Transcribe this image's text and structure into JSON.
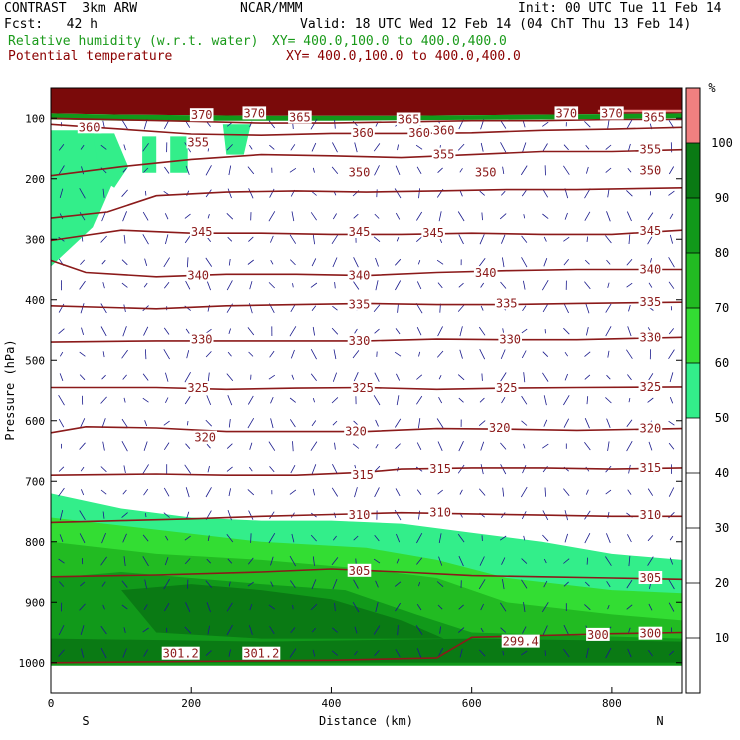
{
  "header": {
    "model": "CONTRAST  3km ARW",
    "org": "NCAR/MMM",
    "init": "Init: 00 UTC Tue 11 Feb 14",
    "fcst": "Fcst:   42 h",
    "valid": "Valid: 18 UTC Wed 12 Feb 14 (04 ChT Thu 13 Feb 14)",
    "field1_name": "Relative humidity (w.r.t. water)",
    "field1_xy": "XY= 400.0,100.0 to 400.0,400.0",
    "field2_name": "Potential temperature",
    "field2_xy": "XY= 400.0,100.0 to 400.0,400.0"
  },
  "colors": {
    "theta_line": "#8b1a1a",
    "theta_label": "#8b1a1a",
    "wind_vector": "#1a1a8c",
    "rh_50": "#33ee8a",
    "rh_60": "#33dd33",
    "rh_70": "#22bb22",
    "rh_80": "#11991a",
    "rh_90": "#0a7a14",
    "rh_100": "#7a0a0a",
    "rh_top": "#f08080"
  },
  "chart_data": {
    "type": "contour",
    "xlabel": "Distance (km)",
    "ylabel": "Pressure (hPa)",
    "xlim": [
      0,
      900
    ],
    "ylim": [
      1050,
      50
    ],
    "x_ticks": [
      0,
      200,
      400,
      600,
      800
    ],
    "y_ticks": [
      100,
      200,
      300,
      400,
      500,
      600,
      700,
      800,
      900,
      1000
    ],
    "x_end_labels": {
      "left": "S",
      "right": "N"
    },
    "colorbar": {
      "unit": "%",
      "levels": [
        10,
        20,
        30,
        40,
        50,
        60,
        70,
        80,
        90,
        100
      ],
      "bands": [
        {
          "from": 0,
          "to": 50,
          "color": "#ffffff"
        },
        {
          "from": 50,
          "to": 60,
          "color": "#33ee8a"
        },
        {
          "from": 60,
          "to": 70,
          "color": "#33dd33"
        },
        {
          "from": 70,
          "to": 80,
          "color": "#22bb22"
        },
        {
          "from": 80,
          "to": 90,
          "color": "#11991a"
        },
        {
          "from": 90,
          "to": 100,
          "color": "#0a7a14"
        },
        {
          "from": 100,
          "to": 110,
          "color": "#f08080"
        }
      ]
    },
    "theta_contours": [
      {
        "level": 300,
        "points": [
          [
            0,
            1000
          ],
          [
            200,
            998
          ],
          [
            400,
            996
          ],
          [
            550,
            992
          ],
          [
            600,
            958
          ],
          [
            700,
            955
          ],
          [
            800,
            952
          ],
          [
            900,
            950
          ]
        ]
      },
      {
        "level": 305,
        "points": [
          [
            0,
            858
          ],
          [
            150,
            855
          ],
          [
            300,
            850
          ],
          [
            400,
            845
          ],
          [
            500,
            850
          ],
          [
            600,
            856
          ],
          [
            700,
            858
          ],
          [
            800,
            860
          ],
          [
            900,
            862
          ]
        ]
      },
      {
        "level": 310,
        "points": [
          [
            0,
            768
          ],
          [
            100,
            765
          ],
          [
            200,
            762
          ],
          [
            300,
            758
          ],
          [
            400,
            755
          ],
          [
            500,
            752
          ],
          [
            600,
            754
          ],
          [
            700,
            756
          ],
          [
            800,
            758
          ],
          [
            900,
            758
          ]
        ]
      },
      {
        "level": 315,
        "points": [
          [
            0,
            690
          ],
          [
            150,
            688
          ],
          [
            250,
            690
          ],
          [
            350,
            690
          ],
          [
            450,
            685
          ],
          [
            500,
            680
          ],
          [
            600,
            678
          ],
          [
            700,
            678
          ],
          [
            800,
            680
          ],
          [
            900,
            678
          ]
        ]
      },
      {
        "level": 320,
        "points": [
          [
            0,
            620
          ],
          [
            50,
            610
          ],
          [
            150,
            612
          ],
          [
            250,
            618
          ],
          [
            350,
            618
          ],
          [
            450,
            618
          ],
          [
            550,
            613
          ],
          [
            650,
            614
          ],
          [
            750,
            616
          ],
          [
            900,
            613
          ]
        ]
      },
      {
        "level": 325,
        "points": [
          [
            0,
            545
          ],
          [
            150,
            545
          ],
          [
            250,
            548
          ],
          [
            350,
            546
          ],
          [
            450,
            545
          ],
          [
            550,
            548
          ],
          [
            650,
            546
          ],
          [
            750,
            545
          ],
          [
            900,
            544
          ]
        ]
      },
      {
        "level": 330,
        "points": [
          [
            0,
            470
          ],
          [
            150,
            468
          ],
          [
            250,
            468
          ],
          [
            350,
            468
          ],
          [
            450,
            468
          ],
          [
            550,
            465
          ],
          [
            650,
            466
          ],
          [
            750,
            466
          ],
          [
            900,
            462
          ]
        ]
      },
      {
        "level": 335,
        "points": [
          [
            0,
            410
          ],
          [
            150,
            415
          ],
          [
            250,
            410
          ],
          [
            350,
            408
          ],
          [
            450,
            406
          ],
          [
            550,
            408
          ],
          [
            650,
            408
          ],
          [
            750,
            406
          ],
          [
            900,
            404
          ]
        ]
      },
      {
        "level": 340,
        "points": [
          [
            0,
            335
          ],
          [
            50,
            355
          ],
          [
            150,
            362
          ],
          [
            250,
            358
          ],
          [
            350,
            358
          ],
          [
            450,
            360
          ],
          [
            550,
            355
          ],
          [
            650,
            352
          ],
          [
            750,
            350
          ],
          [
            900,
            350
          ]
        ]
      },
      {
        "level": 345,
        "points": [
          [
            0,
            302
          ],
          [
            100,
            285
          ],
          [
            200,
            290
          ],
          [
            300,
            290
          ],
          [
            400,
            292
          ],
          [
            500,
            292
          ],
          [
            600,
            290
          ],
          [
            700,
            292
          ],
          [
            800,
            292
          ],
          [
            900,
            285
          ]
        ]
      },
      {
        "level": 350,
        "points": [
          [
            0,
            265
          ],
          [
            80,
            255
          ],
          [
            150,
            228
          ],
          [
            250,
            222
          ],
          [
            350,
            220
          ],
          [
            450,
            222
          ],
          [
            550,
            220
          ],
          [
            650,
            218
          ],
          [
            750,
            218
          ],
          [
            900,
            215
          ]
        ]
      },
      {
        "level": 355,
        "points": [
          [
            0,
            195
          ],
          [
            100,
            180
          ],
          [
            200,
            168
          ],
          [
            300,
            160
          ],
          [
            400,
            162
          ],
          [
            500,
            165
          ],
          [
            600,
            160
          ],
          [
            700,
            155
          ],
          [
            800,
            155
          ],
          [
            900,
            152
          ]
        ]
      },
      {
        "level": 360,
        "points": [
          [
            0,
            110
          ],
          [
            100,
            118
          ],
          [
            200,
            126
          ],
          [
            300,
            128
          ],
          [
            400,
            125
          ],
          [
            500,
            125
          ],
          [
            600,
            124
          ],
          [
            700,
            120
          ],
          [
            800,
            118
          ],
          [
            900,
            115
          ]
        ]
      },
      {
        "level": 365,
        "points": [
          [
            0,
            100
          ],
          [
            200,
            105
          ],
          [
            300,
            108
          ],
          [
            400,
            108
          ],
          [
            500,
            106
          ],
          [
            600,
            104
          ],
          [
            700,
            104
          ],
          [
            800,
            102
          ],
          [
            900,
            102
          ]
        ]
      }
    ],
    "theta_labels": [
      {
        "text": "360",
        "x": 55,
        "p": 115
      },
      {
        "text": "370",
        "x": 215,
        "p": 95
      },
      {
        "text": "370",
        "x": 290,
        "p": 92
      },
      {
        "text": "365",
        "x": 355,
        "p": 99
      },
      {
        "text": "365",
        "x": 510,
        "p": 102
      },
      {
        "text": "370",
        "x": 735,
        "p": 92
      },
      {
        "text": "370",
        "x": 800,
        "p": 92
      },
      {
        "text": "365",
        "x": 860,
        "p": 99
      },
      {
        "text": "355",
        "x": 210,
        "p": 140
      },
      {
        "text": "360",
        "x": 445,
        "p": 124
      },
      {
        "text": "360",
        "x": 525,
        "p": 124
      },
      {
        "text": "360",
        "x": 560,
        "p": 120
      },
      {
        "text": "355",
        "x": 560,
        "p": 160
      },
      {
        "text": "355",
        "x": 855,
        "p": 152
      },
      {
        "text": "350",
        "x": 440,
        "p": 190
      },
      {
        "text": "350",
        "x": 620,
        "p": 190
      },
      {
        "text": "350",
        "x": 855,
        "p": 186
      },
      {
        "text": "345",
        "x": 215,
        "p": 288
      },
      {
        "text": "345",
        "x": 440,
        "p": 288
      },
      {
        "text": "345",
        "x": 545,
        "p": 290
      },
      {
        "text": "345",
        "x": 855,
        "p": 286
      },
      {
        "text": "340",
        "x": 210,
        "p": 360
      },
      {
        "text": "340",
        "x": 440,
        "p": 360
      },
      {
        "text": "340",
        "x": 620,
        "p": 356
      },
      {
        "text": "340",
        "x": 855,
        "p": 350
      },
      {
        "text": "335",
        "x": 440,
        "p": 408
      },
      {
        "text": "335",
        "x": 650,
        "p": 406
      },
      {
        "text": "335",
        "x": 855,
        "p": 404
      },
      {
        "text": "330",
        "x": 215,
        "p": 466
      },
      {
        "text": "330",
        "x": 440,
        "p": 468
      },
      {
        "text": "330",
        "x": 655,
        "p": 466
      },
      {
        "text": "330",
        "x": 855,
        "p": 462
      },
      {
        "text": "325",
        "x": 210,
        "p": 546
      },
      {
        "text": "325",
        "x": 445,
        "p": 546
      },
      {
        "text": "325",
        "x": 650,
        "p": 546
      },
      {
        "text": "325",
        "x": 855,
        "p": 544
      },
      {
        "text": "320",
        "x": 220,
        "p": 628
      },
      {
        "text": "320",
        "x": 435,
        "p": 618
      },
      {
        "text": "320",
        "x": 640,
        "p": 612
      },
      {
        "text": "320",
        "x": 855,
        "p": 613
      },
      {
        "text": "315",
        "x": 445,
        "p": 690
      },
      {
        "text": "315",
        "x": 555,
        "p": 680
      },
      {
        "text": "315",
        "x": 855,
        "p": 678
      },
      {
        "text": "310",
        "x": 440,
        "p": 756
      },
      {
        "text": "310",
        "x": 555,
        "p": 752
      },
      {
        "text": "310",
        "x": 855,
        "p": 756
      },
      {
        "text": "305",
        "x": 440,
        "p": 848
      },
      {
        "text": "305",
        "x": 855,
        "p": 860
      },
      {
        "text": "300",
        "x": 780,
        "p": 954
      },
      {
        "text": "300",
        "x": 855,
        "p": 952
      },
      {
        "text": "299.4",
        "x": 670,
        "p": 965
      },
      {
        "text": "301.2",
        "x": 185,
        "p": 985
      },
      {
        "text": "301.2",
        "x": 300,
        "p": 985
      }
    ]
  }
}
